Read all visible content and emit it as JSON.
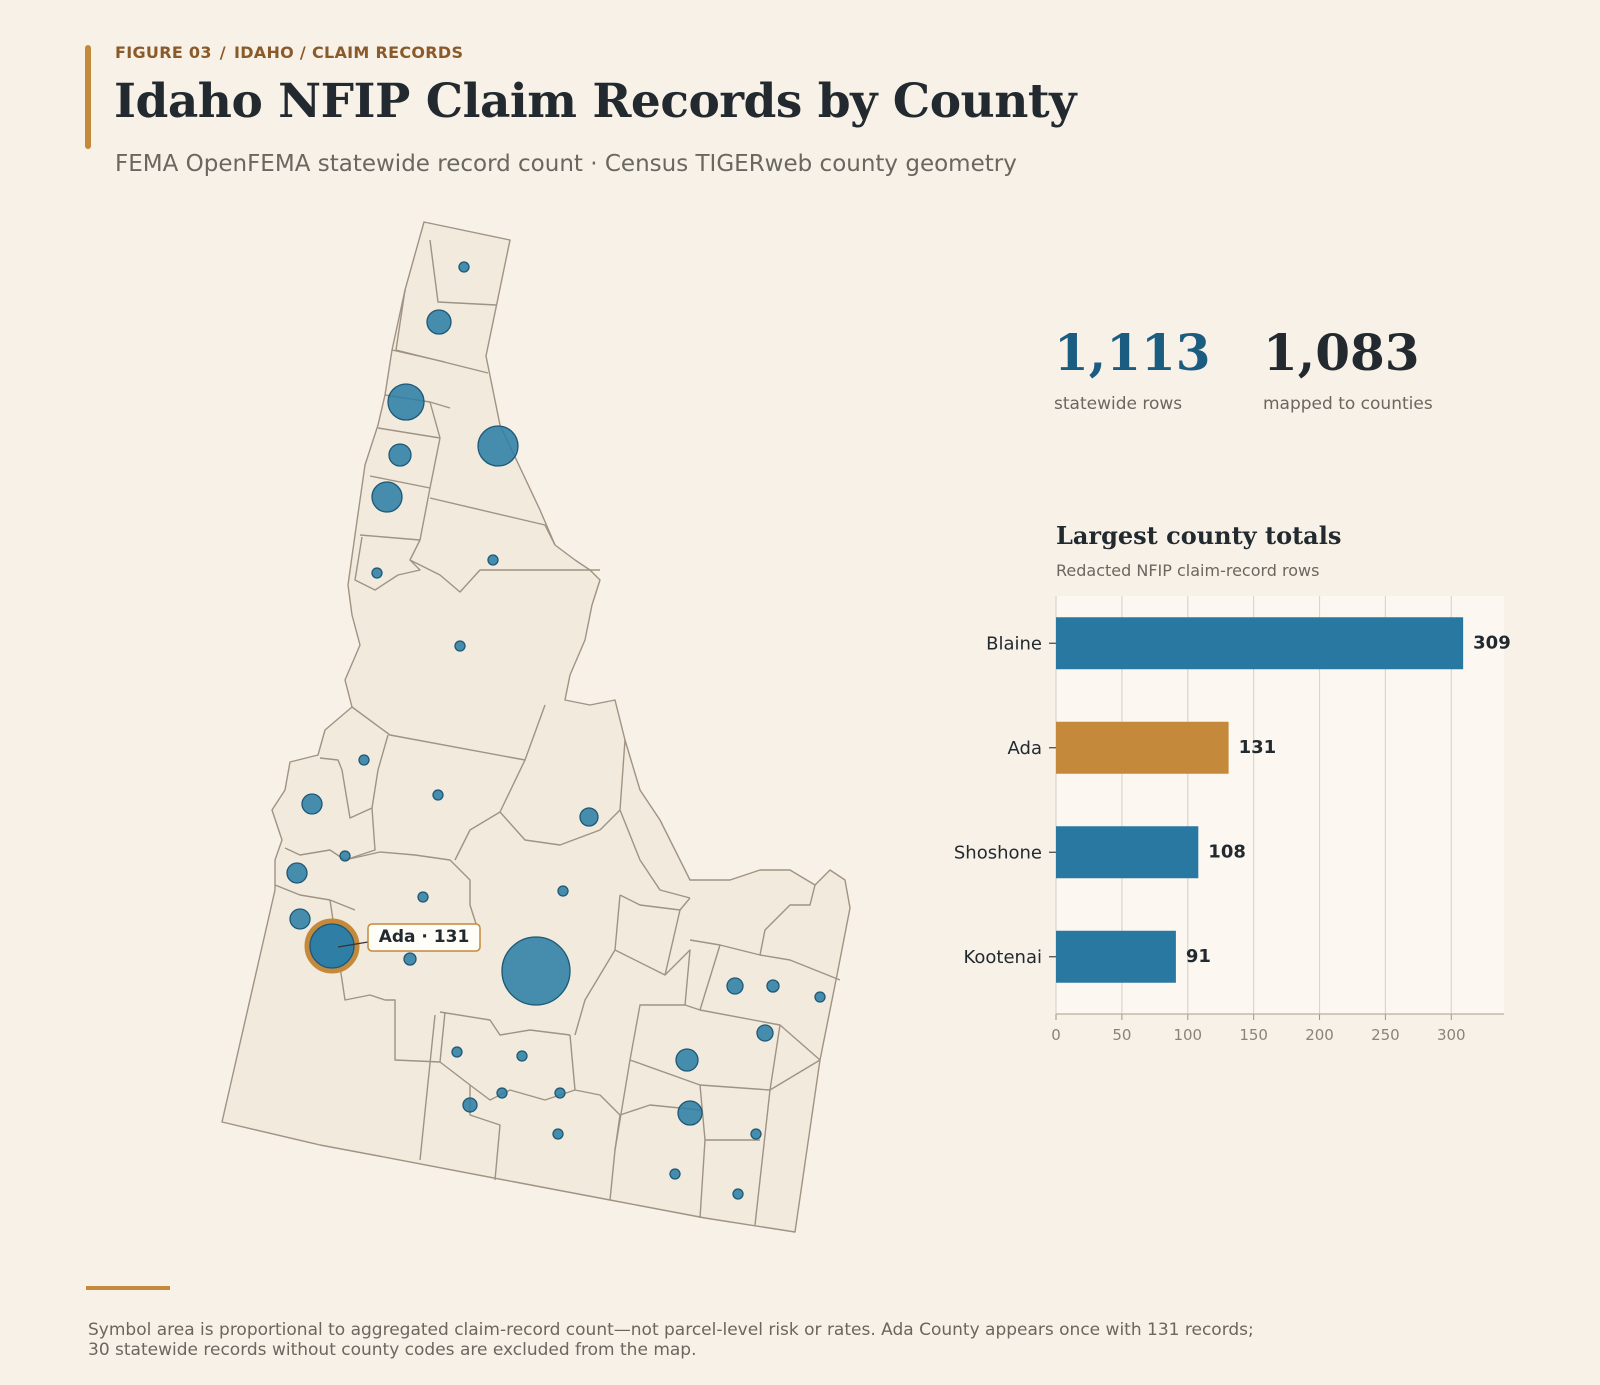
{
  "header": {
    "figure_label": "FIGURE 03",
    "breadcrumb": "IDAHO / CLAIM RECORDS",
    "title": "Idaho NFIP Claim Records by County",
    "subtitle": "FEMA OpenFEMA statewide record count · Census TIGERweb county geometry"
  },
  "stats": {
    "statewide_rows": "1,113",
    "statewide_rows_label": "statewide rows",
    "mapped_rows": "1,083",
    "mapped_rows_label": "mapped to counties"
  },
  "map": {
    "callout": "Ada · 131",
    "highlight_county": "Ada"
  },
  "bar_panel": {
    "title": "Largest county totals",
    "subtitle": "Redacted NFIP claim-record rows"
  },
  "chart_data": {
    "type": "bar",
    "orientation": "horizontal",
    "categories": [
      "Blaine",
      "Ada",
      "Shoshone",
      "Kootenai"
    ],
    "values": [
      309,
      131,
      108,
      91
    ],
    "highlight": "Ada",
    "xlim": [
      0,
      340
    ],
    "xticks": [
      0,
      50,
      100,
      150,
      200,
      250,
      300
    ],
    "grid": true
  },
  "colors": {
    "bar": "#2878a2",
    "highlight": "#c4893a",
    "symbol": "#2e7ea6",
    "county_fill": "#f1eadd",
    "county_stroke": "#a09382"
  },
  "footer": {
    "note_line1": "Symbol area is proportional to aggregated claim-record count—not parcel-level risk or rates. Ada County appears once with 131 records;",
    "note_line2": "30 statewide records without county codes are excluded from the map."
  }
}
